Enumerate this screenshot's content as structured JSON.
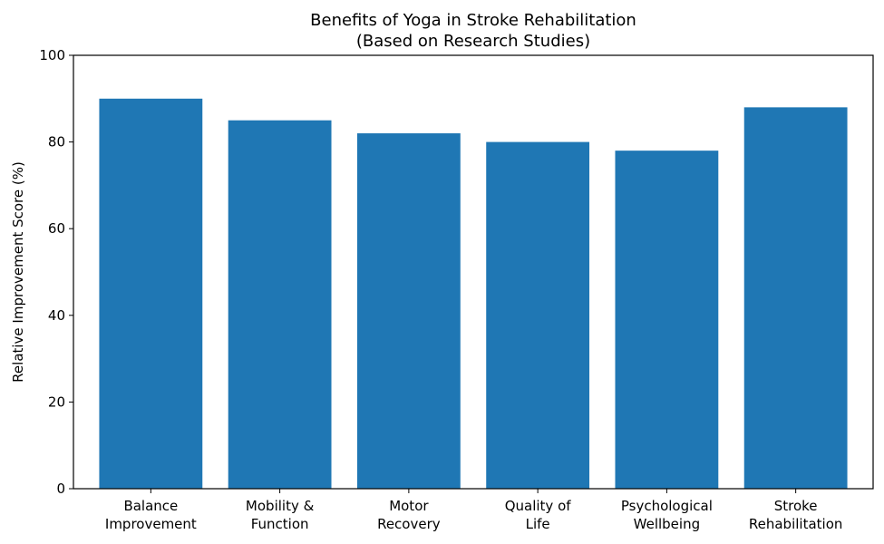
{
  "chart_data": {
    "type": "bar",
    "title": [
      "Benefits of Yoga in Stroke Rehabilitation",
      "(Based on Research Studies)"
    ],
    "xlabel": "",
    "ylabel": "Relative Improvement Score (%)",
    "categories": [
      [
        "Balance",
        "Improvement"
      ],
      [
        "Mobility &",
        "Function"
      ],
      [
        "Motor",
        "Recovery"
      ],
      [
        "Quality of",
        "Life"
      ],
      [
        "Psychological",
        "Wellbeing"
      ],
      [
        "Stroke",
        "Rehabilitation"
      ]
    ],
    "values": [
      90,
      85,
      82,
      80,
      78,
      88
    ],
    "ylim": [
      0,
      100
    ],
    "yticks": [
      "0",
      "20",
      "40",
      "60",
      "80",
      "100"
    ],
    "grid": false,
    "bar_color": "#1f77b4"
  }
}
